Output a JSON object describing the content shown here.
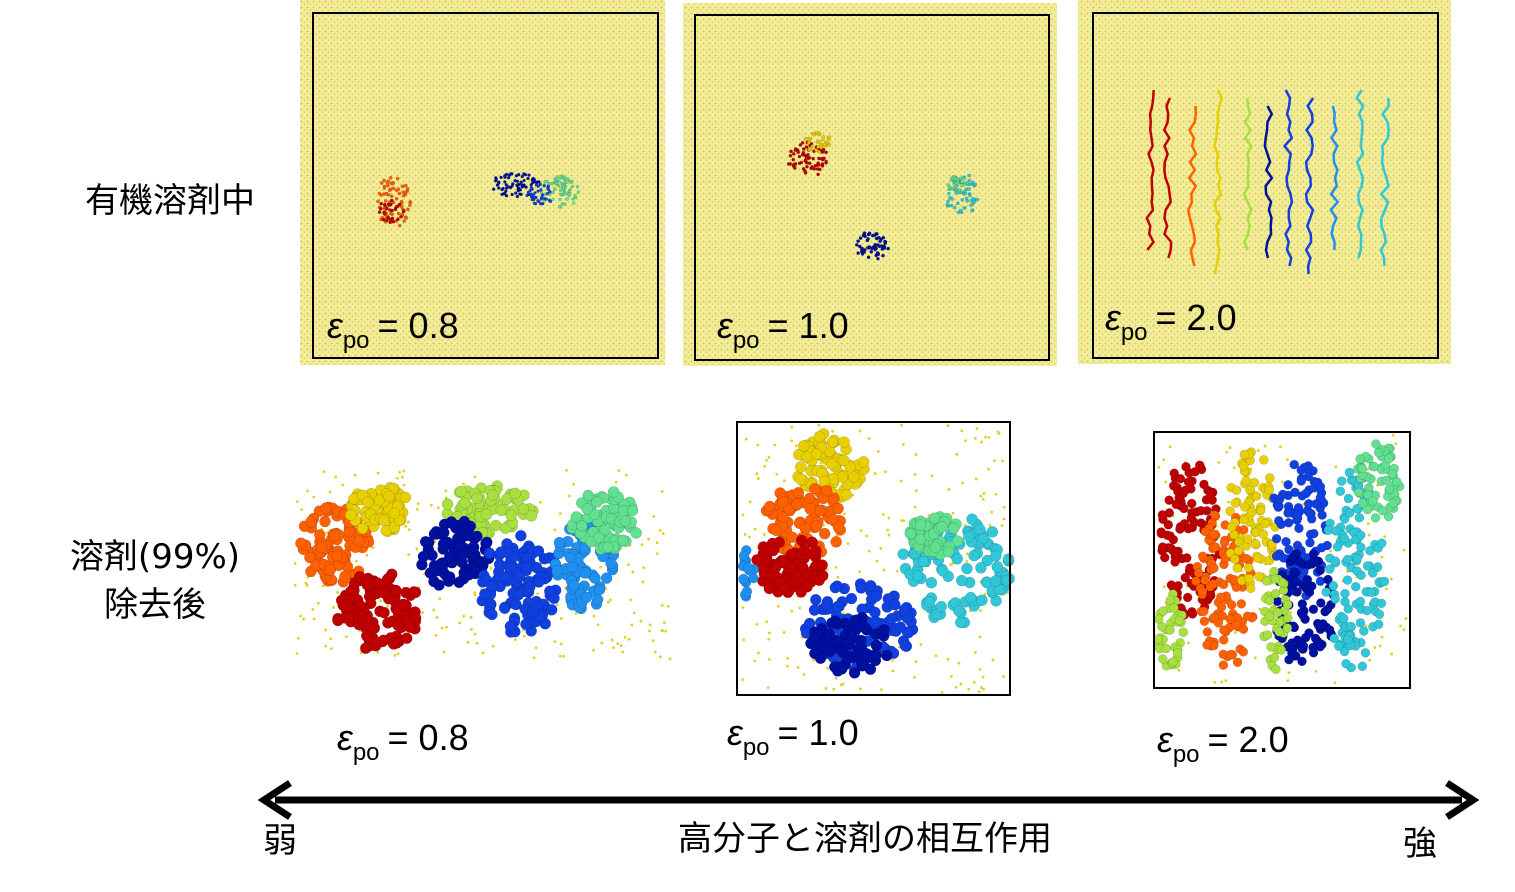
{
  "rows": [
    {
      "label": [
        "有機溶剤中"
      ]
    },
    {
      "label": [
        "溶剤(99%)",
        "除去後"
      ]
    }
  ],
  "panels": [
    [
      {
        "symbol": "ε",
        "subscript": "po",
        "value": "= 0.8"
      },
      {
        "symbol": "ε",
        "subscript": "po",
        "value": "= 1.0"
      },
      {
        "symbol": "ε",
        "subscript": "po",
        "value": "= 2.0"
      }
    ],
    [
      {
        "symbol": "ε",
        "subscript": "po",
        "value": "= 0.8"
      },
      {
        "symbol": "ε",
        "subscript": "po",
        "value": "= 1.0"
      },
      {
        "symbol": "ε",
        "subscript": "po",
        "value": "= 2.0"
      }
    ]
  ],
  "axis": {
    "left": "弱",
    "title": "高分子と溶剤の相互作用",
    "right": "強"
  }
}
